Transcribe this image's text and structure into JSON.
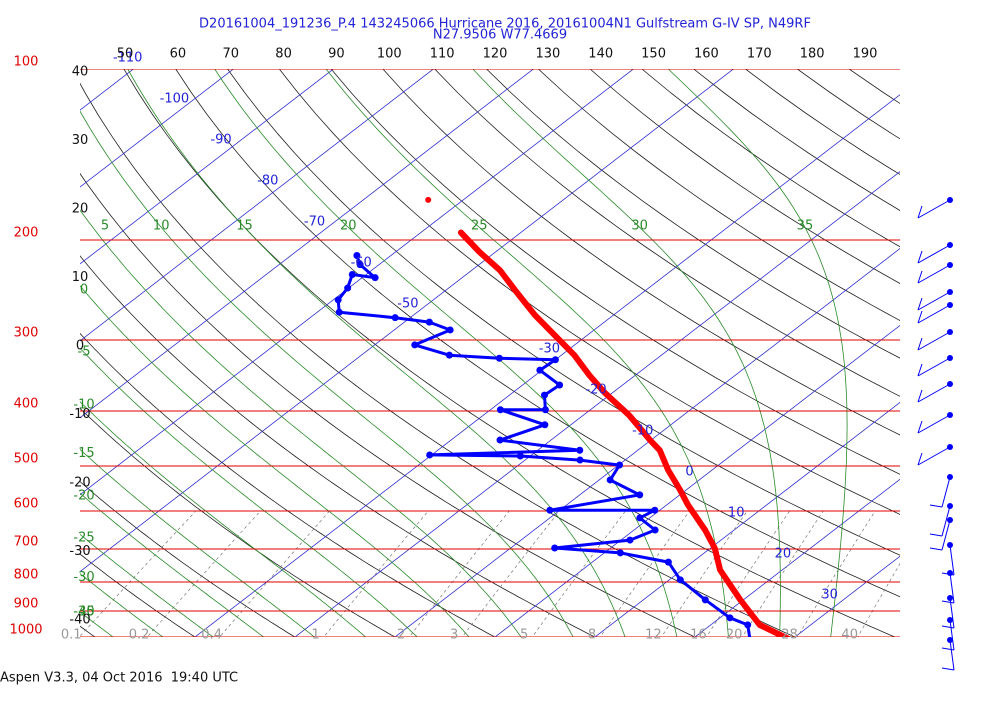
{
  "chart_data": {
    "type": "skewt",
    "title_lines": [
      "D20161004_191236_P.4 143245066 Hurricane 2016, 20161004N1 Gulfstream G-IV SP, N49RF",
      "N27.9506 W77.4669"
    ],
    "footer": "Aspen V3.3, 04 Oct 2016  19:40 UTC",
    "pressure_labels": [
      100,
      200,
      300,
      400,
      500,
      600,
      700,
      800,
      900,
      1000
    ],
    "isotherm_labels": [
      30,
      20,
      10,
      0,
      -10,
      -20,
      -30,
      -50,
      -60,
      -70,
      -80,
      -90,
      -100,
      -110
    ],
    "altitude_labels": [
      40,
      30,
      20,
      10,
      0,
      -10,
      -20,
      -30,
      -40
    ],
    "top_scale": [
      50,
      60,
      70,
      80,
      90,
      100,
      110,
      120,
      130,
      140,
      150,
      160,
      170,
      180,
      190
    ],
    "moist_adiabat_labels_top": [
      5,
      10,
      15,
      20,
      25,
      30,
      35
    ],
    "moist_adiabat_labels_left": [
      0,
      -5,
      -10,
      -15,
      -20,
      -25,
      -30,
      -35,
      -40
    ],
    "mixing_ratio_labels": [
      0.1,
      0.2,
      0.4,
      1,
      2,
      3,
      5,
      8,
      12,
      16,
      20,
      28,
      40
    ],
    "series": [
      {
        "color": "#ff0000",
        "pressure": [
          1020,
          952,
          860,
          762,
          697,
          648,
          585,
          551,
          508,
          469,
          450,
          407,
          372,
          346,
          319,
          294,
          271,
          245,
          226,
          210,
          194
        ],
        "values": [
          30.6,
          24.9,
          19.7,
          13.8,
          10.4,
          7.1,
          2.1,
          -0.6,
          -4.4,
          -7.8,
          -10.1,
          -15.4,
          -20.7,
          -24.6,
          -28.7,
          -33.3,
          -37.9,
          -43.1,
          -47.2,
          -51.6,
          -56.0
        ]
      },
      {
        "color": "#0000ff",
        "pressure": [
          1012,
          952,
          925,
          860,
          793,
          738,
          711,
          697,
          675,
          648,
          617,
          598,
          598,
          562,
          529,
          498,
          488,
          480,
          478,
          469,
          450,
          423,
          398,
          398,
          375,
          360,
          339,
          325,
          323,
          319,
          306,
          288,
          279,
          274,
          268,
          255,
          243,
          230,
          233,
          221,
          213
        ],
        "values": [
          25.9,
          23.7,
          21.0,
          16.2,
          11.1,
          7.6,
          1.6,
          -5.6,
          0.9,
          2.1,
          -1.0,
          -0.5,
          -11.0,
          -4.0,
          -8.9,
          -9.9,
          -14.5,
          -21.0,
          -30.2,
          -15.8,
          -25.1,
          -22.6,
          -29.0,
          -24.5,
          -26.5,
          -26.3,
          -30.2,
          -30.0,
          -35.8,
          -41.2,
          -46.0,
          -44.4,
          -47.5,
          -51.5,
          -57.8,
          -59.5,
          -60.1,
          -61.4,
          -58.7,
          -61.9,
          -63.4
        ]
      }
    ],
    "isolated_point": {
      "pressure": 170,
      "value": -63.5,
      "color": "#ff0000"
    }
  }
}
